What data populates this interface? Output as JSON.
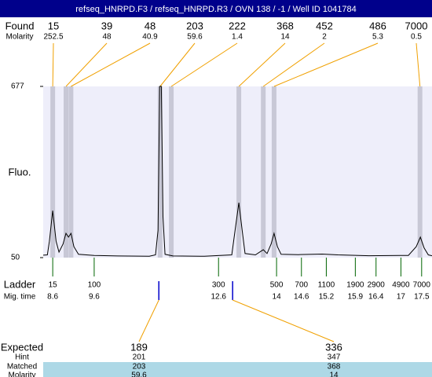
{
  "chart_data": {
    "type": "line",
    "title": "refseq_HNRPD.F3 / refseq_HNRPD.R3 / OVN 138 / -1 / Well ID 1041784",
    "ylabel": "Fluo.",
    "ylim": [
      50,
      677
    ],
    "yticks": [
      50,
      677
    ],
    "xlim": [
      8.37,
      17.75
    ],
    "x": [
      8.37,
      8.47,
      8.52,
      8.6,
      8.68,
      8.75,
      8.85,
      8.92,
      8.98,
      9.04,
      9.11,
      9.22,
      9.6,
      10.17,
      10.93,
      11.08,
      11.14,
      11.18,
      11.22,
      11.26,
      11.31,
      11.5,
      12.26,
      12.92,
      13.0,
      13.09,
      13.17,
      13.24,
      13.49,
      13.68,
      13.77,
      13.87,
      13.94,
      14.02,
      14.11,
      14.53,
      15.1,
      15.48,
      16.23,
      17.18,
      17.37,
      17.47,
      17.56,
      17.66,
      17.75
    ],
    "series": [
      {
        "color": "#000000",
        "values": [
          59,
          60,
          110,
          222,
          110,
          70,
          100,
          139,
          125,
          139,
          90,
          62,
          58,
          56,
          55,
          60,
          150,
          677,
          677,
          200,
          62,
          56,
          55,
          60,
          150,
          251,
          150,
          65,
          60,
          79,
          65,
          100,
          139,
          90,
          62,
          61,
          63,
          60,
          57,
          58,
          90,
          125,
          85,
          60,
          57
        ]
      }
    ],
    "found": {
      "label": "Found",
      "molarity_label": "Molarity",
      "sizes": [
        15,
        39,
        48,
        203,
        222,
        368,
        452,
        486,
        7000
      ],
      "molarity": [
        252.5,
        48,
        40.9,
        59.6,
        1.4,
        14,
        2,
        5.3,
        0.5
      ],
      "peak_times": [
        8.6,
        8.92,
        9.04,
        11.19,
        11.46,
        13.09,
        13.68,
        13.94,
        17.46
      ]
    },
    "ladder": {
      "label": "Ladder",
      "time_label": "Mig. time",
      "sizes": [
        15,
        100,
        300,
        500,
        700,
        1100,
        1900,
        2900,
        4900,
        7000
      ],
      "times": [
        8.6,
        9.6,
        12.6,
        14,
        14.6,
        15.2,
        15.9,
        16.4,
        17,
        17.5
      ]
    },
    "markers": [
      11.16,
      12.94
    ],
    "expected": {
      "row_labels": [
        "Expected",
        "Hint",
        "Matched",
        "Molarity"
      ],
      "columns": [
        [
          189,
          201,
          203,
          59.6
        ],
        [
          336,
          347,
          368,
          14
        ]
      ]
    }
  }
}
